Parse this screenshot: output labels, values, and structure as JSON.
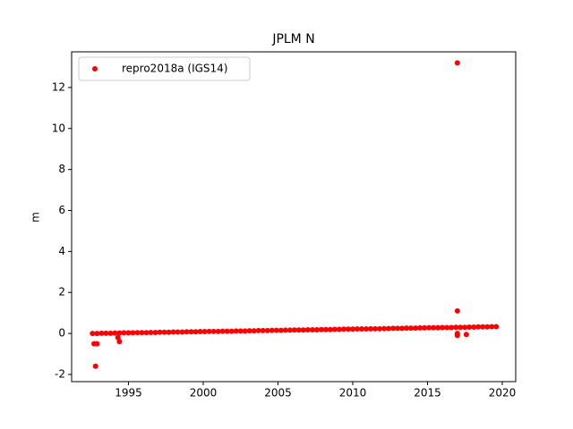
{
  "chart_data": {
    "type": "scatter",
    "title": "JPLM N",
    "ylabel": "m",
    "xlim": [
      1991.2,
      2020.9
    ],
    "ylim": [
      -2.35,
      13.74
    ],
    "xticks": [
      1995,
      2000,
      2005,
      2010,
      2015,
      2020
    ],
    "yticks": [
      -2,
      0,
      2,
      4,
      6,
      8,
      10,
      12
    ],
    "legend": "upper left",
    "series": [
      {
        "name": "repro2018a (IGS14)",
        "color": "#ff0000",
        "x": [
          1992.6,
          1992.9,
          1993.2,
          1993.5,
          1993.8,
          1994.1,
          1994.4,
          1994.7,
          1995.0,
          1995.3,
          1995.6,
          1995.9,
          1996.2,
          1996.5,
          1996.8,
          1997.1,
          1997.4,
          1997.7,
          1998.0,
          1998.3,
          1998.6,
          1998.9,
          1999.2,
          1999.5,
          1999.8,
          2000.1,
          2000.4,
          2000.7,
          2001.0,
          2001.3,
          2001.6,
          2001.9,
          2002.2,
          2002.5,
          2002.8,
          2003.1,
          2003.4,
          2003.7,
          2004.0,
          2004.3,
          2004.6,
          2004.9,
          2005.2,
          2005.5,
          2005.8,
          2006.1,
          2006.4,
          2006.7,
          2007.0,
          2007.3,
          2007.6,
          2007.9,
          2008.2,
          2008.5,
          2008.8,
          2009.1,
          2009.4,
          2009.7,
          2010.0,
          2010.3,
          2010.6,
          2010.9,
          2011.2,
          2011.5,
          2011.8,
          2012.1,
          2012.4,
          2012.7,
          2013.0,
          2013.3,
          2013.6,
          2013.9,
          2014.2,
          2014.5,
          2014.8,
          2015.1,
          2015.4,
          2015.7,
          2016.0,
          2016.3,
          2016.6,
          2016.9,
          2017.2,
          2017.5,
          2017.8,
          2018.1,
          2018.4,
          2018.7,
          2019.0,
          2019.3,
          2019.6,
          2017.0,
          2017.0,
          1992.8,
          1992.7,
          1992.9,
          1994.4,
          1994.3,
          2017.0,
          2017.0,
          2017.6
        ],
        "values": [
          0.0,
          0.0,
          0.01,
          0.01,
          0.01,
          0.02,
          0.02,
          0.03,
          0.03,
          0.03,
          0.04,
          0.04,
          0.04,
          0.05,
          0.05,
          0.06,
          0.06,
          0.06,
          0.07,
          0.07,
          0.07,
          0.08,
          0.08,
          0.08,
          0.09,
          0.09,
          0.1,
          0.1,
          0.1,
          0.11,
          0.11,
          0.11,
          0.12,
          0.12,
          0.12,
          0.13,
          0.13,
          0.14,
          0.14,
          0.14,
          0.15,
          0.15,
          0.15,
          0.16,
          0.16,
          0.17,
          0.17,
          0.17,
          0.18,
          0.18,
          0.18,
          0.19,
          0.19,
          0.19,
          0.2,
          0.2,
          0.21,
          0.21,
          0.21,
          0.22,
          0.22,
          0.22,
          0.23,
          0.23,
          0.23,
          0.24,
          0.24,
          0.25,
          0.25,
          0.25,
          0.26,
          0.26,
          0.26,
          0.27,
          0.27,
          0.28,
          0.28,
          0.28,
          0.29,
          0.29,
          0.29,
          0.3,
          0.3,
          0.3,
          0.31,
          0.31,
          0.32,
          0.32,
          0.32,
          0.33,
          0.33,
          13.2,
          1.1,
          -1.6,
          -0.5,
          -0.5,
          -0.4,
          -0.2,
          -0.1,
          0.0,
          -0.05
        ]
      }
    ]
  }
}
